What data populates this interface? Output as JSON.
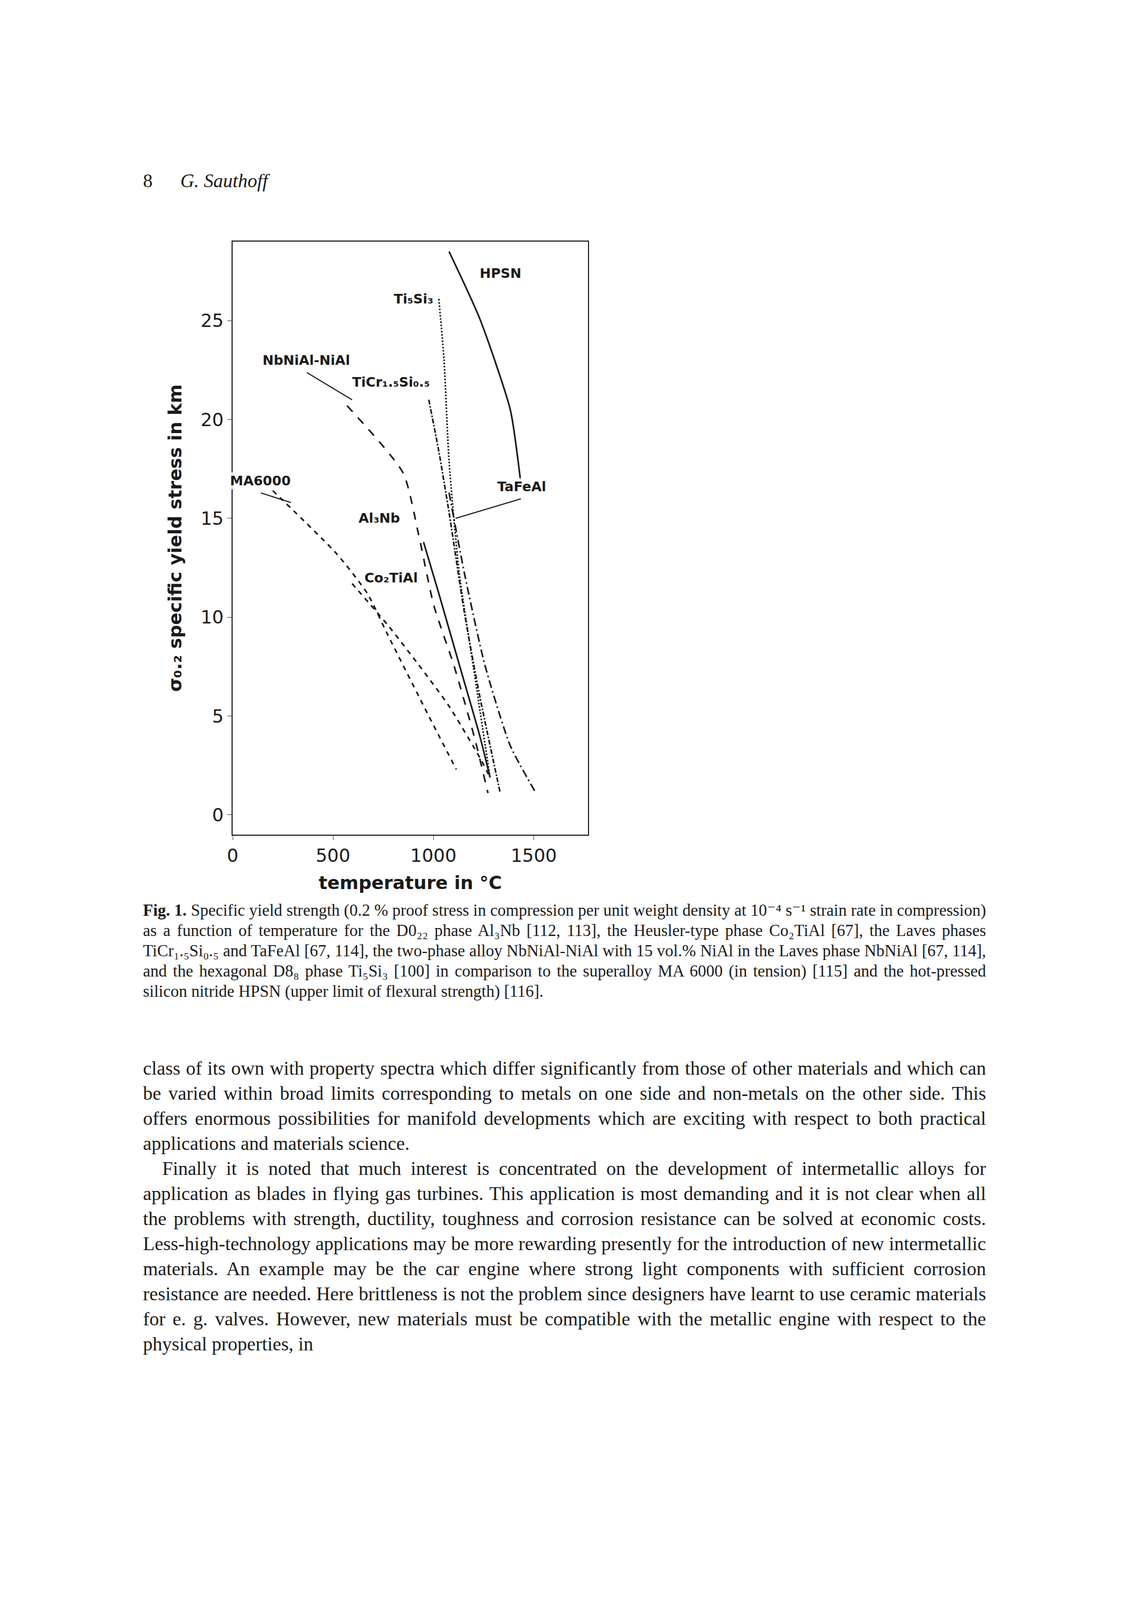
{
  "header": {
    "page": "8",
    "author": "G. Sauthoff"
  },
  "chart_data": {
    "type": "line",
    "x_label": "temperature in °C",
    "y_label": "σ₀.₂ specific yield stress in km",
    "xlim": [
      0,
      1770
    ],
    "ylim": [
      -1,
      29
    ],
    "xticks": [
      0,
      500,
      1000,
      1500
    ],
    "yticks": [
      0,
      5,
      10,
      15,
      20,
      25
    ],
    "grid": false,
    "series": [
      {
        "name": "HPSN",
        "color": "#1a1a1a",
        "line_style": "solid",
        "x": [
          1078,
          1231,
          1383,
          1434
        ],
        "values": [
          28.5,
          25.1,
          20.5,
          16.9
        ]
      },
      {
        "name": "Ti₅Si₃",
        "color": "#1a1a1a",
        "line_style": "dot",
        "x": [
          1027,
          1053,
          1078,
          1129,
          1205,
          1282
        ],
        "values": [
          26.1,
          23.0,
          17.9,
          12.2,
          7.1,
          1.9
        ]
      },
      {
        "name": "NbNiAl-NiAl",
        "color": "#1a1a1a",
        "line_style": "longdash",
        "x": [
          570,
          849,
          926,
          1002,
          1104,
          1205,
          1272
        ],
        "values": [
          20.7,
          17.3,
          14.2,
          10.6,
          7.5,
          3.9,
          1.1
        ]
      },
      {
        "name": "TiCr₁.₅Si₀.₅",
        "color": "#1a1a1a",
        "line_style": "dashdot",
        "x": [
          977,
          1027,
          1078,
          1155,
          1231,
          1333
        ],
        "values": [
          21.0,
          18.4,
          15.3,
          10.2,
          6.0,
          1.1
        ]
      },
      {
        "name": "MA6000",
        "color": "#1a1a1a",
        "line_style": "dash",
        "x": [
          200,
          519,
          671,
          773,
          977,
          1114
        ],
        "values": [
          16.4,
          13.2,
          11.2,
          9.1,
          5.0,
          2.3
        ]
      },
      {
        "name": "TaFeAl",
        "color": "#1a1a1a",
        "line_style": "longdashdot",
        "x": [
          1078,
          1155,
          1256,
          1383,
          1511
        ],
        "values": [
          16.3,
          12.2,
          7.6,
          3.5,
          1.1
        ]
      },
      {
        "name": "Al₃Nb",
        "color": "#1a1a1a",
        "line_style": "solid",
        "x": [
          951,
          1027,
          1129,
          1231,
          1282
        ],
        "values": [
          13.8,
          11.2,
          7.6,
          4.0,
          1.9
        ]
      },
      {
        "name": "Co₂TiAl",
        "color": "#1a1a1a",
        "line_style": "dash",
        "x": [
          595,
          773,
          926,
          1078,
          1231,
          1282
        ],
        "values": [
          11.7,
          9.6,
          7.6,
          5.5,
          2.9,
          1.9
        ]
      }
    ]
  },
  "caption": {
    "label": "Fig. 1.",
    "text": "Specific yield strength (0.2 % proof stress in compression per unit weight density at 10⁻⁴ s⁻¹ strain rate in compression) as a function of temperature for the D0₂₂ phase Al₃Nb [112, 113], the Heusler-type phase Co₂TiAl [67], the Laves phases TiCr₁.₅Si₀.₅ and TaFeAl [67, 114], the two-phase alloy NbNiAl-NiAl with 15 vol.% NiAl in the Laves phase NbNiAl [67, 114], and the hexagonal D8₈ phase Ti₅Si₃ [100] in comparison to the superalloy MA 6000 (in tension) [115] and the hot-pressed silicon nitride HPSN (upper limit of flexural strength) [116]."
  },
  "body": [
    "class of its own with property spectra which differ significantly from those of other materials and which can be varied within broad limits corresponding to metals on one side and non-metals on the other side. This offers enormous possibilities for manifold developments which are exciting with respect to both practical applications and materials science.",
    "Finally it is noted that much interest is concentrated on the development of intermetallic alloys for application as blades in flying gas turbines. This application is most demanding and it is not clear when all the problems with strength, ductility, toughness and corrosion resistance can be solved at economic costs. Less-high-technology applications may be more rewarding presently for the introduction of new intermetallic materials. An example may be the car engine where strong light components with sufficient corrosion resistance are needed. Here brittleness is not the problem since designers have learnt to use ceramic materials for e. g. valves. However, new materials must be compatible with the metallic engine with respect to the physical properties, in"
  ]
}
